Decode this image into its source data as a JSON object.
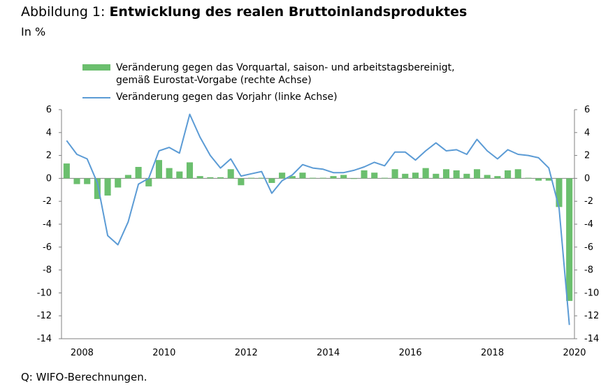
{
  "header": {
    "title_prefix": "Abbildung 1: ",
    "title_main": "Entwicklung des realen Bruttoinlandsproduktes",
    "subtitle": "In %"
  },
  "footer": {
    "source": "Q: WIFO-Berechnungen."
  },
  "legend": {
    "bar_line1": "Veränderung gegen das Vorquartal, saison- und arbeitstagsbereinigt,",
    "bar_line2": "gemäß Eurostat-Vorgabe (rechte Achse)",
    "line_label": "Veränderung gegen das Vorjahr (linke Achse)"
  },
  "colors": {
    "bars": "#6bbf6e",
    "line": "#5b9bd5",
    "axis": "#808080"
  },
  "chart_data": {
    "type": "bar+line",
    "x_tick_labels": [
      "2008",
      "2010",
      "2012",
      "2014",
      "2016",
      "2018",
      "2020"
    ],
    "quarters_start": "2007-Q3",
    "ylim_left": [
      -14,
      6
    ],
    "ylim_right": [
      -14,
      6
    ],
    "y_ticks": [
      6,
      4,
      2,
      0,
      -2,
      -4,
      -6,
      -8,
      -10,
      -12,
      -14
    ],
    "series": [
      {
        "name": "Veränderung gegen das Vorquartal, saison- und arbeitstagsbereinigt, gemäß Eurostat-Vorgabe (rechte Achse)",
        "kind": "bar",
        "axis": "right",
        "values": [
          1.3,
          -0.5,
          -0.5,
          -1.8,
          -1.5,
          -0.8,
          0.3,
          1.0,
          -0.7,
          1.6,
          0.9,
          0.6,
          1.4,
          0.2,
          0.1,
          0.1,
          0.8,
          -0.6,
          0.05,
          0.05,
          -0.4,
          0.5,
          0.2,
          0.5,
          0.05,
          0.05,
          0.2,
          0.3,
          -0.05,
          0.7,
          0.5,
          0.05,
          0.8,
          0.4,
          0.5,
          0.9,
          0.4,
          0.8,
          0.7,
          0.4,
          0.8,
          0.3,
          0.2,
          0.7,
          0.8,
          0.05,
          -0.2,
          -0.2,
          -2.5,
          -10.7
        ]
      },
      {
        "name": "Veränderung gegen das Vorjahr (linke Achse)",
        "kind": "line",
        "axis": "left",
        "values": [
          3.3,
          2.1,
          1.7,
          -0.4,
          -5.0,
          -5.8,
          -3.8,
          -0.5,
          0.0,
          2.4,
          2.7,
          2.2,
          5.6,
          3.6,
          2.0,
          0.9,
          1.7,
          0.2,
          0.4,
          0.6,
          -1.3,
          -0.2,
          0.3,
          1.2,
          0.9,
          0.8,
          0.5,
          0.5,
          0.7,
          1.0,
          1.4,
          1.1,
          2.3,
          2.3,
          1.6,
          2.4,
          3.1,
          2.4,
          2.5,
          2.1,
          3.4,
          2.4,
          1.7,
          2.5,
          2.1,
          2.0,
          1.8,
          0.9,
          -2.6,
          -12.8
        ]
      }
    ]
  }
}
